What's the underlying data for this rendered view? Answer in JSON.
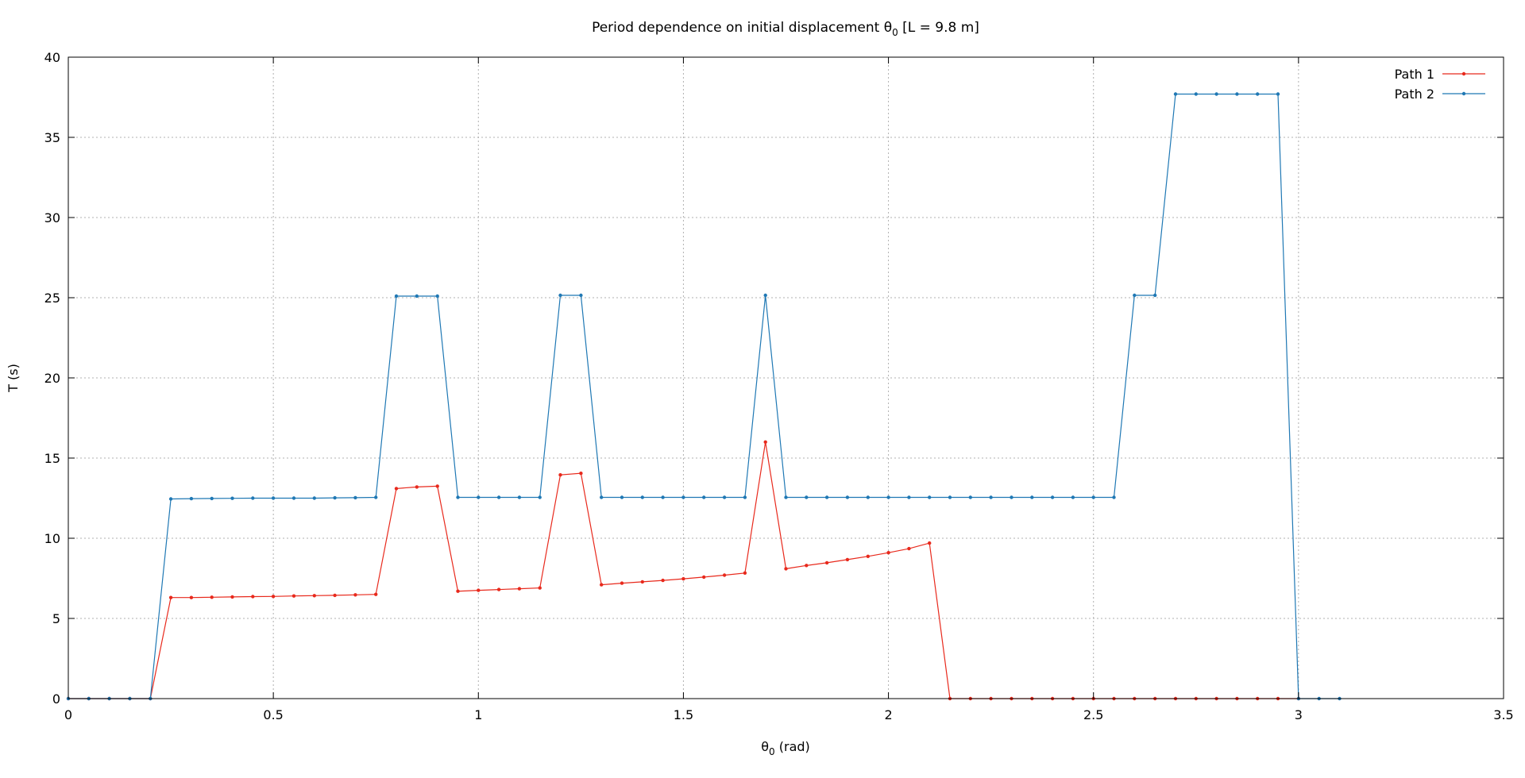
{
  "chart_data": {
    "type": "line",
    "title": "Period dependence on initial displacement θ",
    "title_sub": "0",
    "title_rest": " [L = 9.8 m]",
    "xlabel": "θ",
    "xlabel_sub": "0",
    "xlabel_rest": " (rad)",
    "ylabel": "T (s)",
    "xlim": [
      0,
      3.5
    ],
    "ylim": [
      0,
      40
    ],
    "xticks": [
      0,
      0.5,
      1,
      1.5,
      2,
      2.5,
      3,
      3.5
    ],
    "xtick_labels": [
      "0",
      "0.5",
      "1",
      "1.5",
      "2",
      "2.5",
      "3",
      "3.5"
    ],
    "yticks": [
      0,
      5,
      10,
      15,
      20,
      25,
      30,
      35,
      40
    ],
    "ytick_labels": [
      "0",
      "5",
      "10",
      "15",
      "20",
      "25",
      "30",
      "35",
      "40"
    ],
    "grid": true,
    "legend_position": "top-right",
    "x": [
      0,
      0.05,
      0.1,
      0.15,
      0.2,
      0.25,
      0.3,
      0.35,
      0.4,
      0.45,
      0.5,
      0.55,
      0.6,
      0.65,
      0.7,
      0.75,
      0.8,
      0.85,
      0.9,
      0.95,
      1.0,
      1.05,
      1.1,
      1.15,
      1.2,
      1.25,
      1.3,
      1.35,
      1.4,
      1.45,
      1.5,
      1.55,
      1.6,
      1.65,
      1.7,
      1.75,
      1.8,
      1.85,
      1.9,
      1.95,
      2.0,
      2.05,
      2.1,
      2.15,
      2.2,
      2.25,
      2.3,
      2.35,
      2.4,
      2.45,
      2.5,
      2.55,
      2.6,
      2.65,
      2.7,
      2.75,
      2.8,
      2.85,
      2.9,
      2.95,
      3.0,
      3.05,
      3.1
    ],
    "series": [
      {
        "name": "Path 1",
        "color": "#e8291c",
        "values": [
          0,
          0,
          0,
          0,
          0,
          6.3,
          6.3,
          6.32,
          6.34,
          6.36,
          6.37,
          6.4,
          6.42,
          6.44,
          6.47,
          6.5,
          13.1,
          13.2,
          13.25,
          6.7,
          6.75,
          6.8,
          6.85,
          6.9,
          13.95,
          14.05,
          7.1,
          7.2,
          7.28,
          7.37,
          7.47,
          7.58,
          7.7,
          7.83,
          16.0,
          8.1,
          8.3,
          8.47,
          8.67,
          8.87,
          9.1,
          9.35,
          9.7,
          0,
          0,
          0,
          0,
          0,
          0,
          0,
          0,
          0,
          0,
          0,
          0,
          0,
          0,
          0,
          0,
          0,
          0,
          null,
          null
        ]
      },
      {
        "name": "Path 2",
        "color": "#1f78b4",
        "values": [
          0,
          0,
          0,
          0,
          0,
          12.45,
          12.47,
          12.48,
          12.49,
          12.5,
          12.5,
          12.5,
          12.5,
          12.52,
          12.53,
          12.55,
          25.1,
          25.1,
          25.1,
          12.55,
          12.55,
          12.55,
          12.55,
          12.55,
          25.15,
          25.15,
          12.55,
          12.55,
          12.55,
          12.55,
          12.55,
          12.55,
          12.55,
          12.55,
          25.15,
          12.55,
          12.55,
          12.55,
          12.55,
          12.55,
          12.55,
          12.55,
          12.55,
          12.55,
          12.55,
          12.55,
          12.55,
          12.55,
          12.55,
          12.55,
          12.55,
          12.55,
          25.15,
          25.15,
          37.7,
          37.7,
          37.7,
          37.7,
          37.7,
          37.7,
          0,
          0,
          0
        ]
      }
    ]
  }
}
